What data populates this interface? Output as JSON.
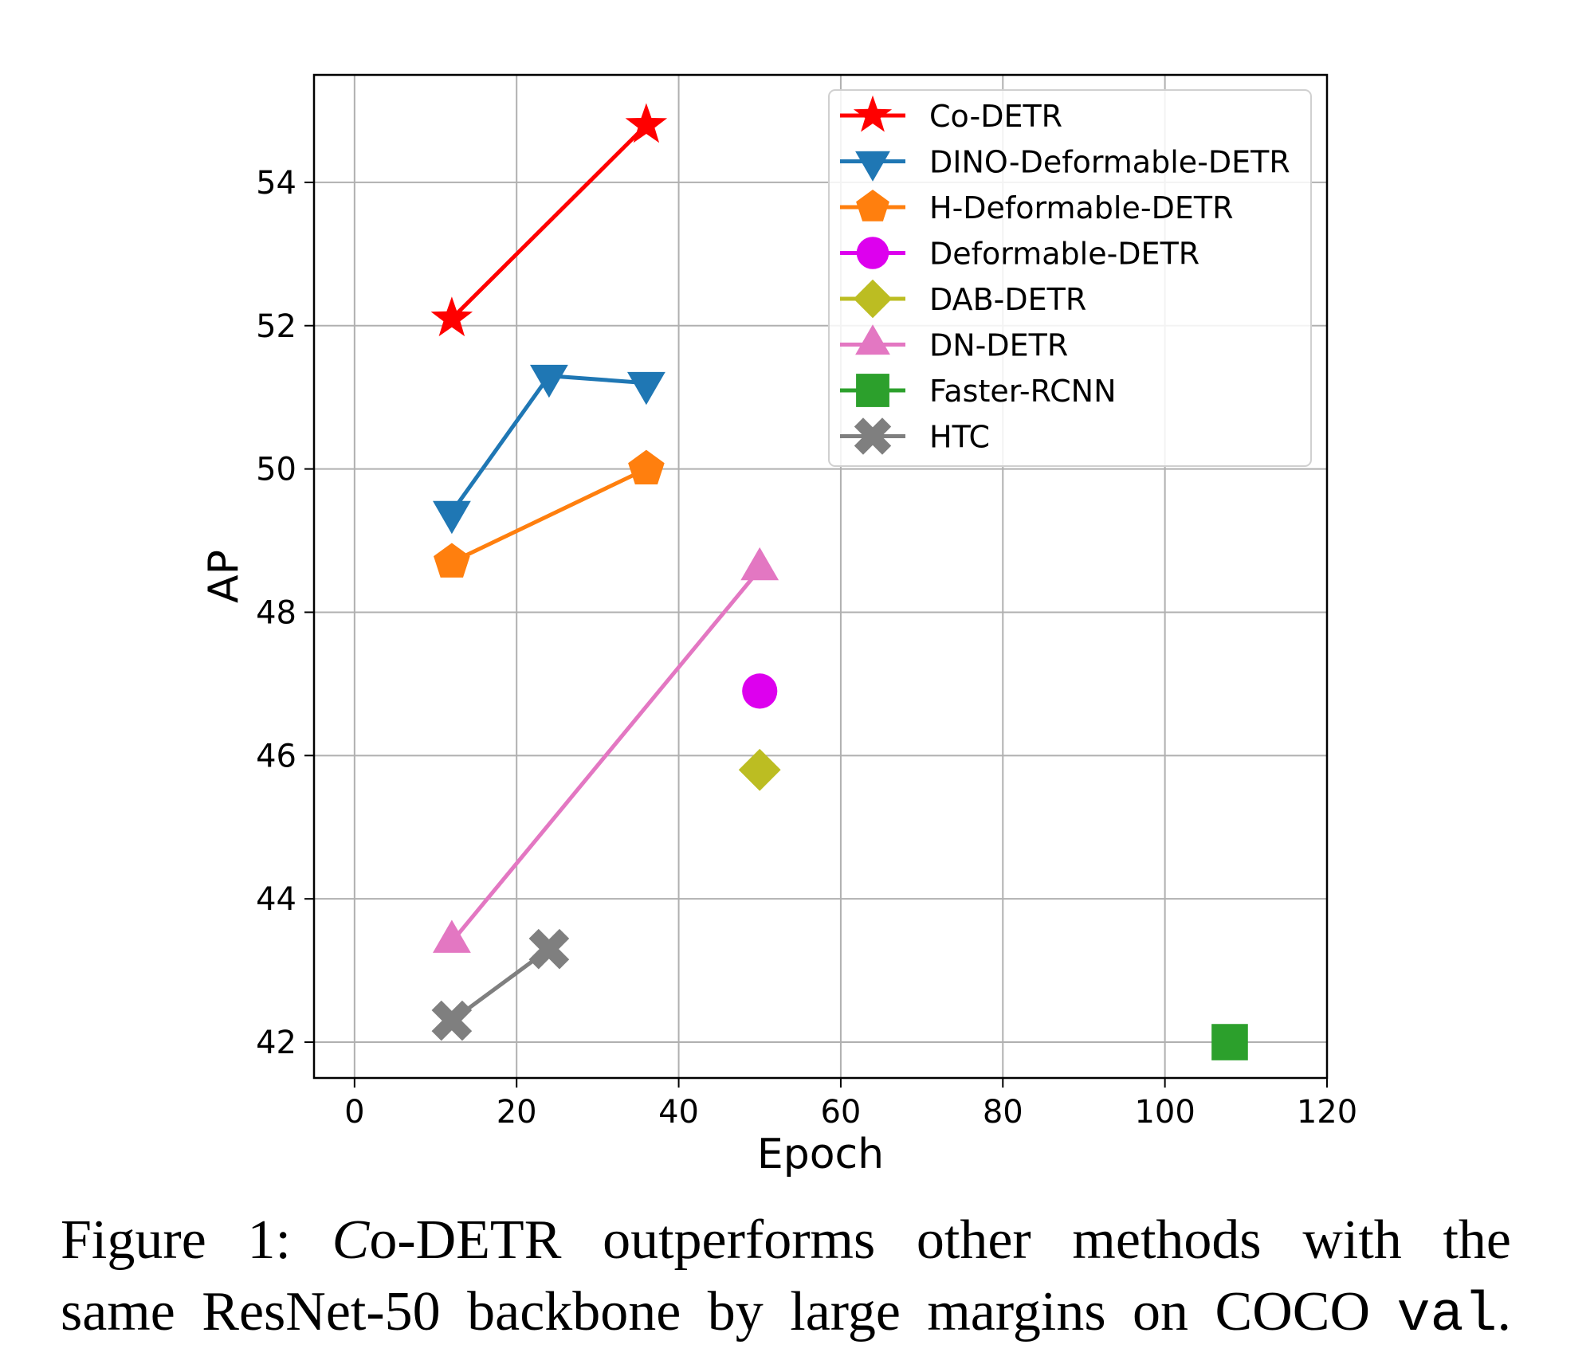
{
  "chart_data": {
    "type": "line",
    "xlabel": "Epoch",
    "ylabel": "AP",
    "xlim": [
      -5,
      120
    ],
    "ylim": [
      41.5,
      55.5
    ],
    "xticks": [
      0,
      20,
      40,
      60,
      80,
      100,
      120
    ],
    "yticks": [
      42,
      44,
      46,
      48,
      50,
      52,
      54
    ],
    "grid": true,
    "legend_position": "top-right",
    "series": [
      {
        "name": "Co-DETR",
        "color": "#ff0000",
        "marker": "star",
        "x": [
          12,
          36
        ],
        "y": [
          52.1,
          54.8
        ]
      },
      {
        "name": "DINO-Deformable-DETR",
        "color": "#1f77b4",
        "marker": "triangle-down",
        "x": [
          12,
          24,
          36
        ],
        "y": [
          49.4,
          51.3,
          51.2
        ]
      },
      {
        "name": "H-Deformable-DETR",
        "color": "#ff7f0e",
        "marker": "pentagon",
        "x": [
          12,
          36
        ],
        "y": [
          48.7,
          50.0
        ]
      },
      {
        "name": "Deformable-DETR",
        "color": "#dd00ee",
        "marker": "circle",
        "x": [
          50
        ],
        "y": [
          46.9
        ]
      },
      {
        "name": "DAB-DETR",
        "color": "#bcbd22",
        "marker": "diamond",
        "x": [
          50
        ],
        "y": [
          45.8
        ]
      },
      {
        "name": "DN-DETR",
        "color": "#e377c2",
        "marker": "triangle-up",
        "x": [
          12,
          50
        ],
        "y": [
          43.4,
          48.6
        ]
      },
      {
        "name": "Faster-RCNN",
        "color": "#2ca02c",
        "marker": "square",
        "x": [
          108
        ],
        "y": [
          42.0
        ]
      },
      {
        "name": "HTC",
        "color": "#7f7f7f",
        "marker": "x",
        "x": [
          12,
          24
        ],
        "y": [
          42.3,
          43.3
        ]
      }
    ]
  },
  "caption": {
    "line1_prefix": "Figure 1: ",
    "line1_co": "C",
    "line1_rest": "o-DETR outperforms other methods with the",
    "line2_text": "same ResNet-50 backbone by large margins on COCO ",
    "line2_mono": "val",
    "line2_end": "."
  }
}
